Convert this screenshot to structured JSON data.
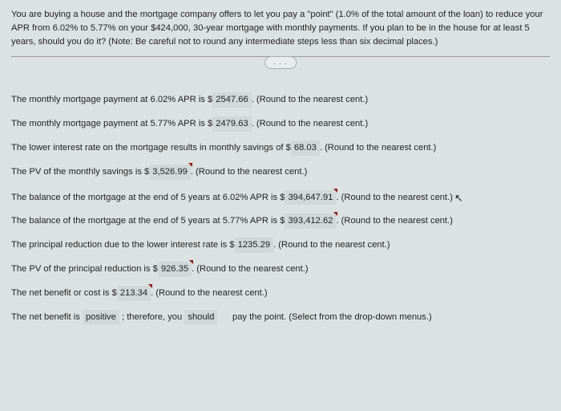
{
  "question": {
    "text": "You are buying a house and the mortgage company offers to let you pay a \"point\" (1.0% of the total amount of the loan) to reduce your APR from 6.02% to 5.77% on your $424,000, 30-year mortgage with monthly payments. If you plan to be in the house for at least 5 years, should you do it? (Note: Be careful not to round any intermediate steps less than six decimal places.)"
  },
  "ellipsis": ". . .",
  "lines": {
    "l1_pre": "The monthly mortgage payment at 6.02% APR is $",
    "l1_val": "2547.66",
    "l1_post": ". (Round to the nearest cent.)",
    "l2_pre": "The monthly mortgage payment at 5.77% APR is $",
    "l2_val": "2479.63",
    "l2_post": ". (Round to the nearest cent.)",
    "l3_pre": "The lower interest rate on the mortgage results in monthly savings of $",
    "l3_val": "68.03",
    "l3_post": ". (Round to the nearest cent.)",
    "l4_pre": "The PV of the monthly savings is $",
    "l4_val": "3,526.99",
    "l4_post": ". (Round to the nearest cent.)",
    "l5_pre": "The balance of the mortgage at the end of 5 years at 6.02% APR is $",
    "l5_val": "394,647.91",
    "l5_post": ". (Round to the nearest cent.)",
    "l6_pre": "The balance of the mortgage at the end of 5 years at 5.77% APR is $",
    "l6_val": "393,412.62",
    "l6_post": ". (Round to the nearest cent.)",
    "l7_pre": "The principal reduction due to the lower interest rate is $",
    "l7_val": "1235.29",
    "l7_post": ". (Round to the nearest cent.)",
    "l8_pre": "The PV of the principal reduction is $",
    "l8_val": "926.35",
    "l8_post": ". (Round to the nearest cent.)",
    "l9_pre": "The net benefit or cost is $",
    "l9_val": "213.34",
    "l9_post": ". (Round to the nearest cent.)",
    "l10_pre": "The net benefit is ",
    "l10_val1": "positive",
    "l10_mid": " ; therefore, you ",
    "l10_val2": "should",
    "l10_post": " pay the point. (Select from the drop-down menus.)"
  },
  "style": {
    "bg": "#dce2e1",
    "highlight_bg": "#d2d8d8",
    "mark_color": "#8b1a1a"
  }
}
